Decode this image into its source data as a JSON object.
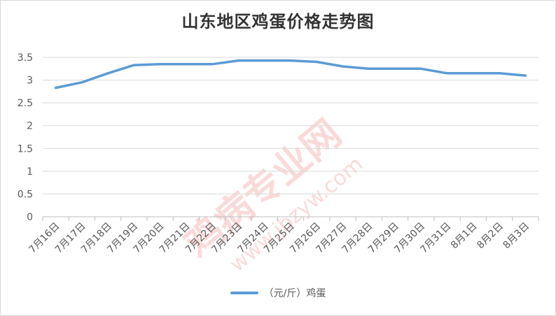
{
  "chart_data": {
    "type": "line",
    "title": "山东地区鸡蛋价格走势图",
    "categories": [
      "7月16日",
      "7月17日",
      "7月18日",
      "7月19日",
      "7月20日",
      "7月21日",
      "7月22日",
      "7月23日",
      "7月24日",
      "7月25日",
      "7月26日",
      "7月27日",
      "7月28日",
      "7月29日",
      "7月30日",
      "7月31日",
      "8月1日",
      "8月2日",
      "8月3日"
    ],
    "series": [
      {
        "name": "（元/斤）鸡蛋",
        "values": [
          2.83,
          2.95,
          3.15,
          3.33,
          3.35,
          3.35,
          3.35,
          3.43,
          3.43,
          3.43,
          3.4,
          3.3,
          3.25,
          3.25,
          3.25,
          3.15,
          3.15,
          3.15,
          3.1
        ]
      }
    ],
    "ylim": [
      0,
      3.5
    ],
    "yticks": [
      0,
      0.5,
      1,
      1.5,
      2,
      2.5,
      3,
      3.5
    ],
    "ytick_labels": [
      "0",
      "0.5",
      "1",
      "1.5",
      "2",
      "2.5",
      "3",
      "3.5"
    ],
    "grid": true,
    "legend_position": "bottom",
    "colors": {
      "line": "#5b9bd5",
      "grid": "#d9d9d9",
      "watermark": "#e53935"
    }
  },
  "watermark": {
    "main": "鸡病专业网",
    "url": "www.jbzyw.com"
  }
}
